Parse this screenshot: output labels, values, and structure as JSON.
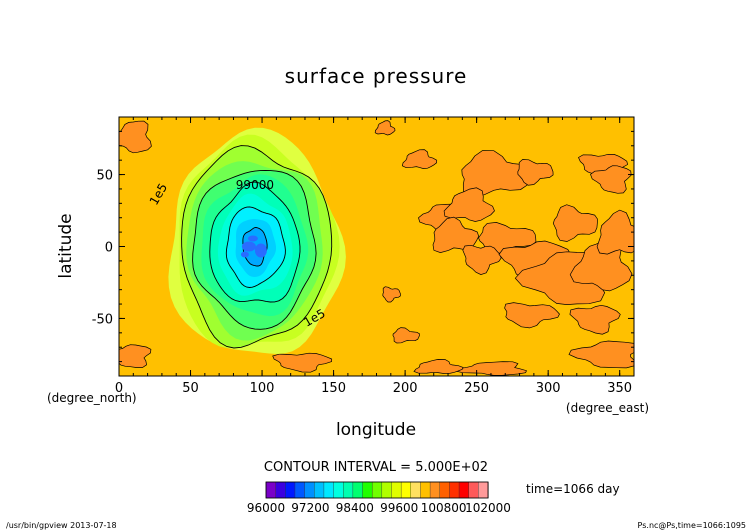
{
  "chart_data": {
    "type": "heatmap",
    "title": "surface pressure",
    "xlabel": "longitude",
    "ylabel": "latitude",
    "x_unit": "(degree_east)",
    "y_unit": "(degree_north)",
    "xlim": [
      0,
      360
    ],
    "ylim": [
      -90,
      90
    ],
    "x_ticks": [
      "0",
      "50",
      "100",
      "150",
      "200",
      "250",
      "300",
      "350"
    ],
    "y_ticks": [
      "50",
      "0",
      "-50"
    ],
    "contour_interval_text": "CONTOUR INTERVAL = 5.000E+02",
    "contour_labels": [
      {
        "text": "99000",
        "lon": 95,
        "lat": 40
      },
      {
        "text": "1e5",
        "lon": 30,
        "lat": 35
      },
      {
        "text": "1e5",
        "lon": 138,
        "lat": -52
      }
    ],
    "low_center": {
      "lon": 95,
      "lat": 0,
      "value": 96000
    },
    "background_value": 100300,
    "colorbar": {
      "tick_labels": [
        "96000",
        "97200",
        "98400",
        "99600",
        "100800",
        "102000"
      ],
      "colors": [
        "#7a00c8",
        "#3a00e0",
        "#0018ff",
        "#0058ff",
        "#0090ff",
        "#00c0ff",
        "#00e8ff",
        "#00ffe0",
        "#00ffb0",
        "#00ff70",
        "#20ff00",
        "#70ff00",
        "#b0ff00",
        "#e0ff00",
        "#ffff00",
        "#ffe060",
        "#ffc000",
        "#ff9020",
        "#ff6000",
        "#ff3000",
        "#ff0000",
        "#ff5a5a",
        "#ff9a9a"
      ],
      "range": [
        96000,
        102000
      ]
    },
    "time_text": "time=1066 day",
    "grid": false,
    "legend": "colorbar-bottom"
  },
  "footer": {
    "left": "/usr/bin/gpview  2013-07-18",
    "right": "Ps.nc@Ps,time=1066:1095"
  }
}
